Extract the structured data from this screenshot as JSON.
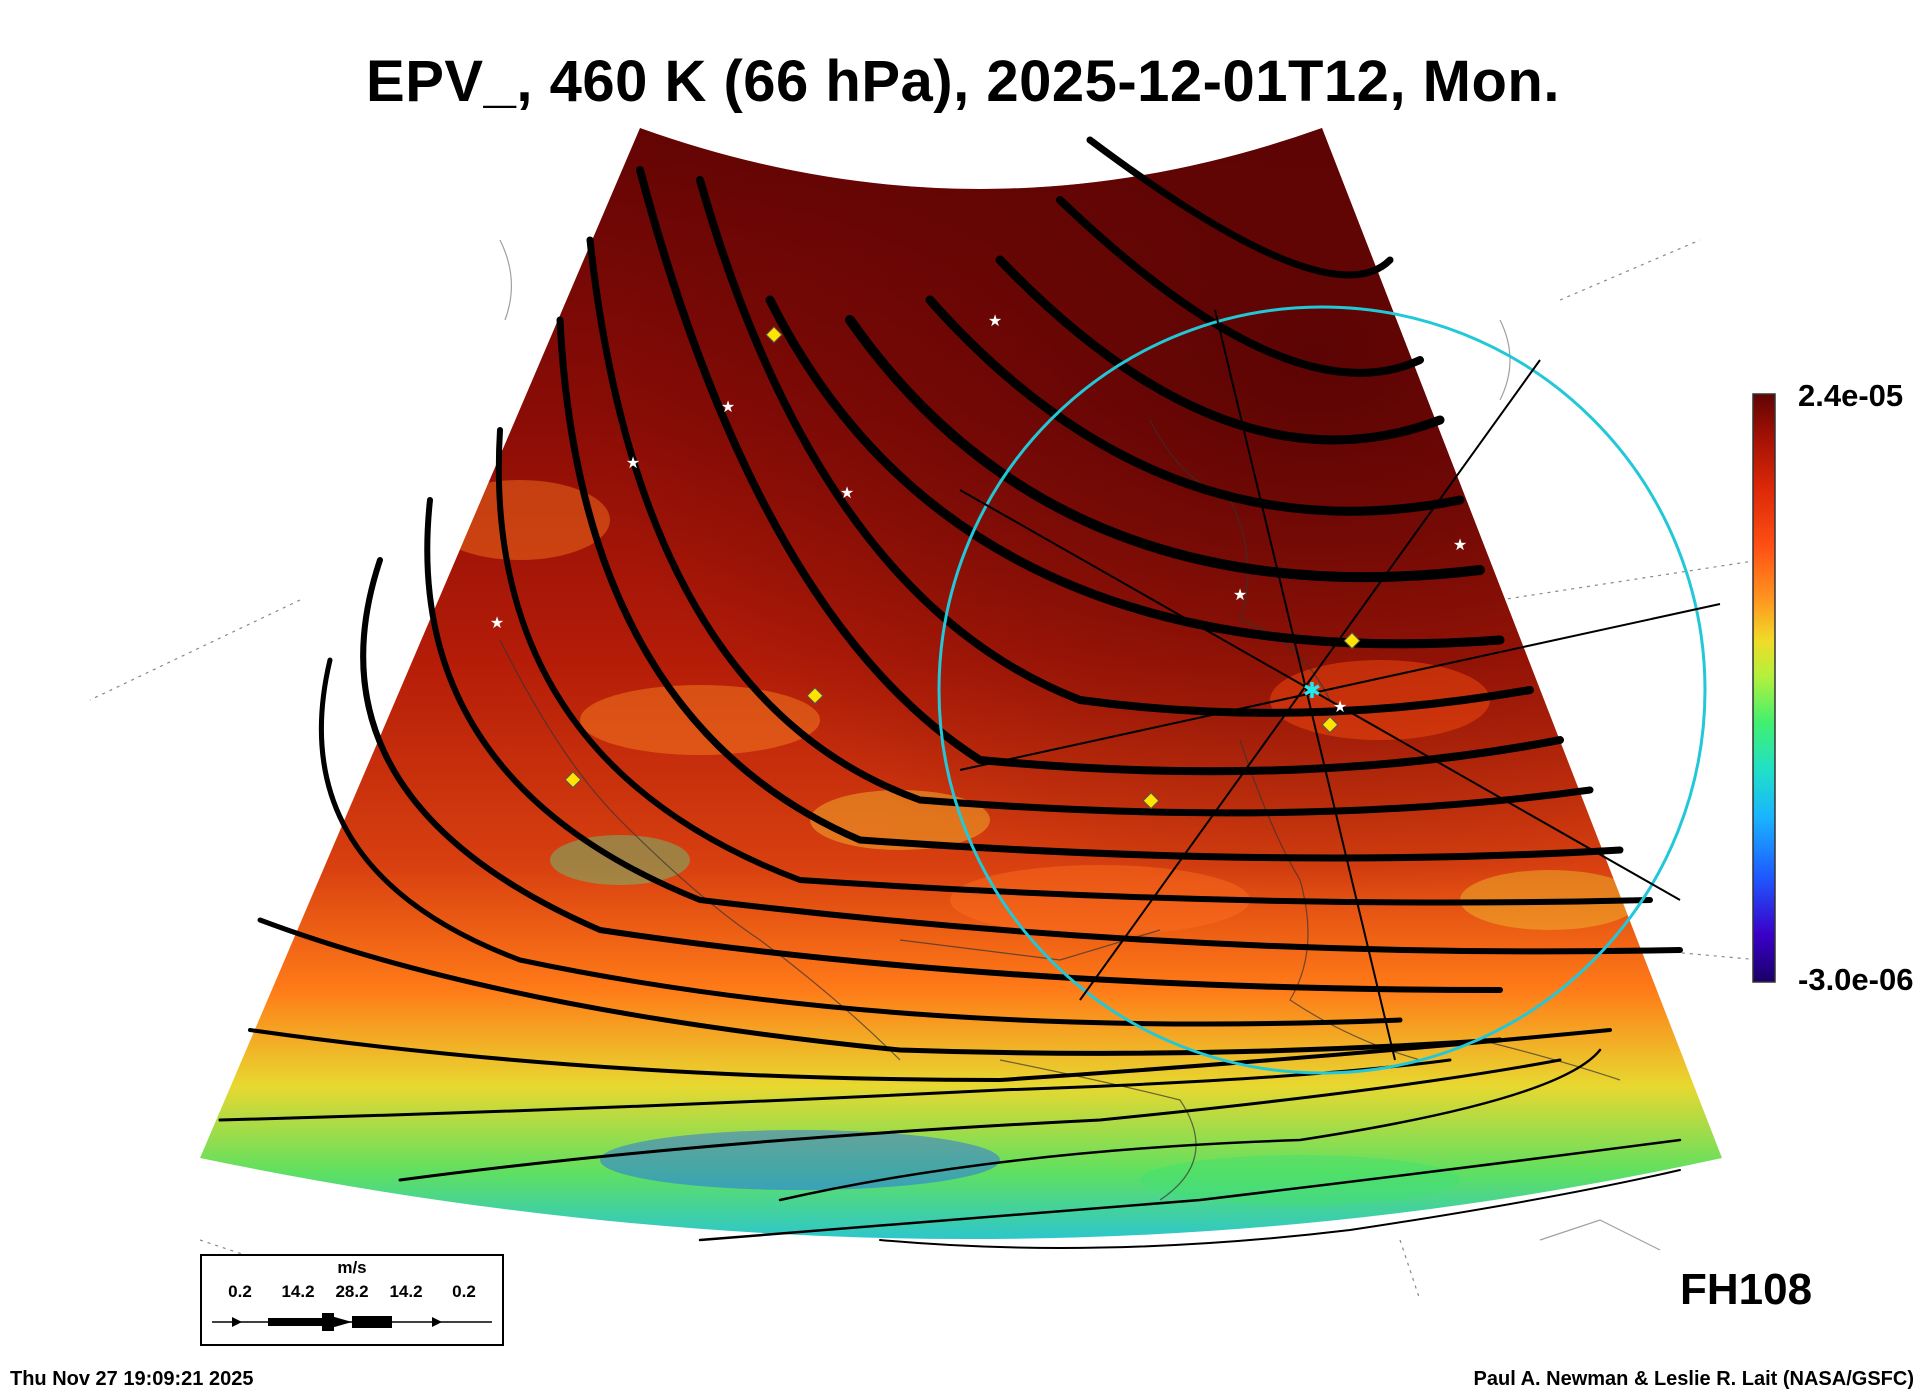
{
  "title": "EPV_, 460 K (66 hPa), 2025-12-01T12, Mon.",
  "colorbar": {
    "max_label": "2.4e-05",
    "min_label": "-3.0e-06",
    "colors": [
      "#1a0066",
      "#3a00c8",
      "#1e5aff",
      "#19b4ff",
      "#20e0c8",
      "#40f070",
      "#b4f03c",
      "#f0dc28",
      "#ff9620",
      "#ff5014",
      "#dc2808",
      "#a01004",
      "#600404"
    ]
  },
  "forecast_hour": "FH108",
  "legend": {
    "units": "m/s",
    "speeds": [
      "0.2",
      "14.2",
      "28.2",
      "14.2",
      "0.2"
    ]
  },
  "timestamp": "Thu Nov 27 19:09:21 2025",
  "credit": "Paul A. Newman & Leslie R. Lait (NASA/GSFC)",
  "map": {
    "circle_color": "#22c8d8",
    "star_marker_color": "#ffffff",
    "diamond_marker_color": "#ffe400"
  }
}
